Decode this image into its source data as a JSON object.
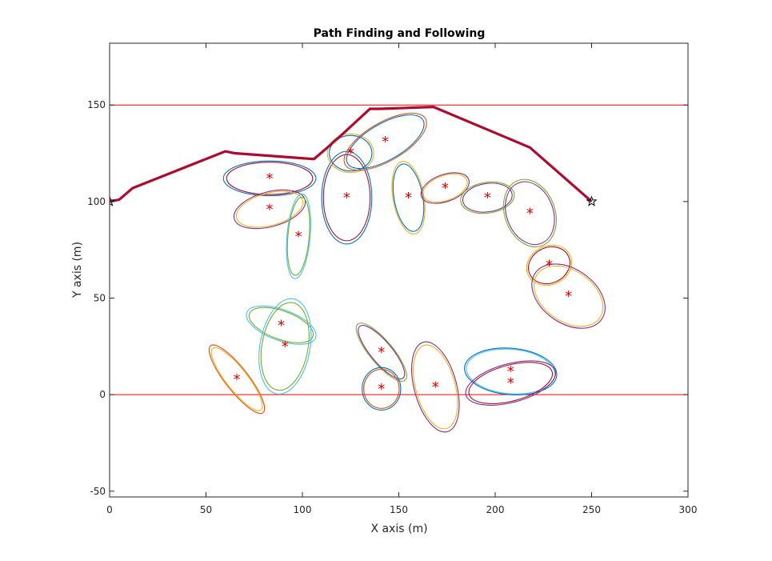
{
  "chart_data": {
    "type": "line",
    "title": "Path Finding and Following",
    "xlabel": "X axis (m)",
    "ylabel": "Y axis (m)",
    "xlim": [
      0,
      300
    ],
    "ylim": [
      -53,
      182
    ],
    "xticks": [
      0,
      50,
      100,
      150,
      200,
      250,
      300
    ],
    "yticks": [
      -50,
      0,
      50,
      100,
      150
    ],
    "grid": false,
    "colors": {
      "boundary": "#ff0000",
      "path_main": "#cc0000",
      "path_overlay": "#6b1f8f",
      "center": "#ff0000",
      "ellipse_palette": [
        "#0072bd",
        "#d95319",
        "#edb120",
        "#7e2f8e",
        "#77ac30",
        "#4dbeee",
        "#a2142f"
      ]
    },
    "boundaries": [
      {
        "y": 150
      },
      {
        "y": 0
      }
    ],
    "start_point": {
      "x": 0,
      "y": 100
    },
    "goal_point": {
      "x": 250,
      "y": 100
    },
    "path": {
      "x": [
        0,
        5,
        12,
        60,
        65,
        106,
        113,
        122,
        135,
        140,
        168,
        218,
        250
      ],
      "y": [
        100,
        101,
        107,
        126,
        125,
        122,
        128,
        136,
        148,
        148,
        149,
        128,
        100
      ]
    },
    "obstacles": [
      {
        "center": [
          83,
          112
        ],
        "rx": 24,
        "ry": 9,
        "angle": 0,
        "ellipses": [
          {
            "color": 0
          },
          {
            "color": 6,
            "scale": 0.93
          }
        ]
      },
      {
        "center": [
          83,
          96
        ],
        "rx": 19,
        "ry": 9,
        "angle": 15,
        "ellipses": [
          {
            "color": 3
          },
          {
            "color": 2,
            "scale": 0.93
          }
        ]
      },
      {
        "center": [
          98,
          82
        ],
        "rx": 6,
        "ry": 22,
        "angle": -5,
        "ellipses": [
          {
            "color": 5
          },
          {
            "color": 4,
            "scale": 0.92
          }
        ]
      },
      {
        "center": [
          123,
          102
        ],
        "rx": 13,
        "ry": 24,
        "angle": 0,
        "ellipses": [
          {
            "color": 0
          },
          {
            "color": 6,
            "scale": 0.93
          }
        ]
      },
      {
        "center": [
          125,
          125
        ],
        "rx": 12,
        "ry": 10,
        "angle": 0,
        "ellipses": [
          {
            "color": 2
          },
          {
            "color": 0,
            "scale": 0.92
          }
        ]
      },
      {
        "center": [
          143,
          131
        ],
        "rx": 24,
        "ry": 10,
        "angle": 30,
        "ellipses": [
          {
            "color": 1
          },
          {
            "color": 0,
            "scale": 0.94
          }
        ]
      },
      {
        "center": [
          155,
          102
        ],
        "rx": 8,
        "ry": 19,
        "angle": 10,
        "ellipses": [
          {
            "color": 2
          },
          {
            "color": 0,
            "scale": 0.93
          }
        ]
      },
      {
        "center": [
          174,
          107
        ],
        "rx": 13,
        "ry": 7,
        "angle": 20,
        "ellipses": [
          {
            "color": 3
          },
          {
            "color": 2,
            "scale": 0.92
          }
        ]
      },
      {
        "center": [
          196,
          102
        ],
        "rx": 14,
        "ry": 8,
        "angle": 8,
        "ellipses": [
          {
            "color": 4
          },
          {
            "color": 3,
            "scale": 0.92
          }
        ]
      },
      {
        "center": [
          218,
          94
        ],
        "rx": 13,
        "ry": 18,
        "angle": 20,
        "ellipses": [
          {
            "color": 4
          },
          {
            "color": 3,
            "scale": 0.93
          }
        ]
      },
      {
        "center": [
          228,
          67
        ],
        "rx": 12,
        "ry": 10,
        "angle": 25,
        "ellipses": [
          {
            "color": 2
          },
          {
            "color": 6,
            "scale": 0.92
          }
        ]
      },
      {
        "center": [
          238,
          51
        ],
        "rx": 21,
        "ry": 14,
        "angle": -35,
        "ellipses": [
          {
            "color": 3
          },
          {
            "color": 2,
            "scale": 0.94
          }
        ]
      },
      {
        "center": [
          89,
          36
        ],
        "rx": 19,
        "ry": 8,
        "angle": -20,
        "ellipses": [
          {
            "color": 5
          },
          {
            "color": 4,
            "scale": 0.92
          }
        ]
      },
      {
        "center": [
          91,
          25
        ],
        "rx": 13,
        "ry": 25,
        "angle": -10,
        "ellipses": [
          {
            "color": 5
          },
          {
            "color": 4,
            "scale": 0.92
          }
        ]
      },
      {
        "center": [
          66,
          8
        ],
        "rx": 6,
        "ry": 22,
        "angle": 38,
        "ellipses": [
          {
            "color": 1
          },
          {
            "color": 2,
            "scale": 0.92
          }
        ]
      },
      {
        "center": [
          141,
          22
        ],
        "rx": 6,
        "ry": 19,
        "angle": 40,
        "ellipses": [
          {
            "color": 4
          },
          {
            "color": 3,
            "scale": 0.92
          }
        ]
      },
      {
        "center": [
          141,
          3
        ],
        "rx": 10,
        "ry": 11,
        "angle": 0,
        "ellipses": [
          {
            "color": 0
          },
          {
            "color": 1,
            "scale": 0.92
          }
        ]
      },
      {
        "center": [
          169,
          4
        ],
        "rx": 11,
        "ry": 24,
        "angle": 15,
        "ellipses": [
          {
            "color": 3
          },
          {
            "color": 2,
            "scale": 0.93
          }
        ]
      },
      {
        "center": [
          208,
          12
        ],
        "rx": 24,
        "ry": 12,
        "angle": -5,
        "ellipses": [
          {
            "color": 0
          },
          {
            "color": 5,
            "scale": 0.96
          }
        ]
      },
      {
        "center": [
          208,
          6
        ],
        "rx": 24,
        "ry": 10,
        "angle": 15,
        "ellipses": [
          {
            "color": 3
          },
          {
            "color": 6,
            "scale": 0.93
          }
        ]
      }
    ]
  }
}
